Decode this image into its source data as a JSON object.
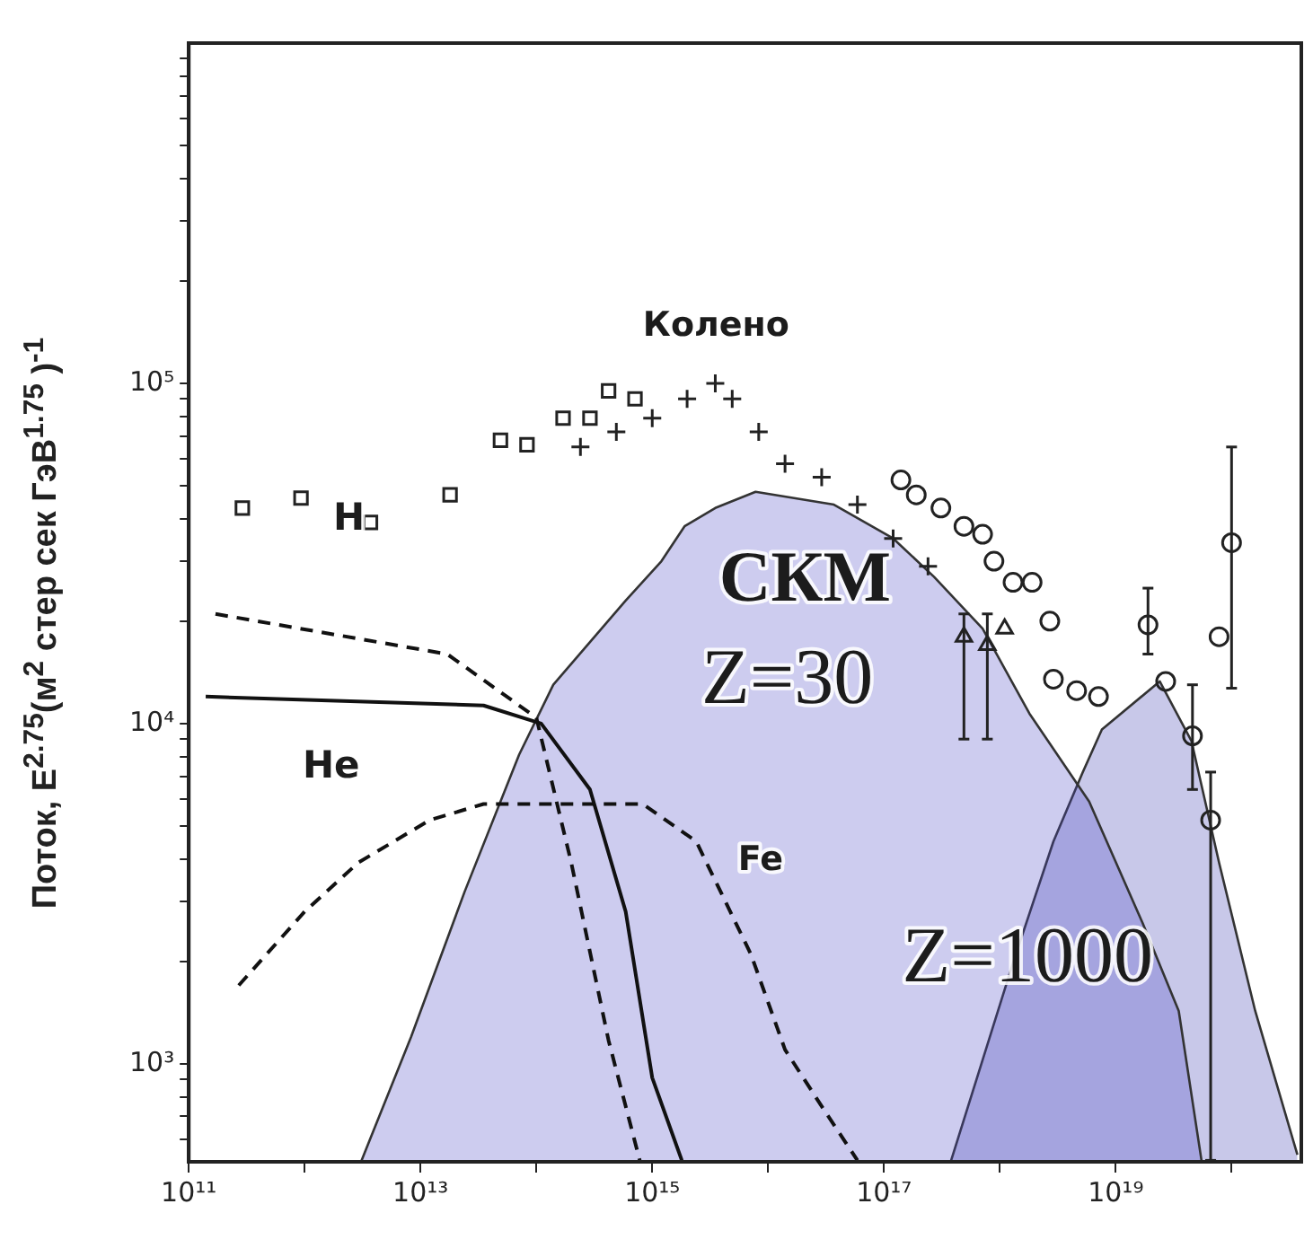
{
  "chart_data": {
    "type": "line",
    "ylabel": "Поток, E$^{2.75}$(м$^{2}$ стер сек ГэВ$^{1.75}$ )$^{-1}$",
    "log": "xy",
    "grid": false,
    "legend": false,
    "xlim": [
      100000000000.0,
      4e+20
    ],
    "ylim": [
      515,
      1000000.0
    ],
    "xticks": [
      {
        "value": 100000000000.0,
        "label": "10¹¹"
      },
      {
        "value": 1000000000000.0,
        "label": null
      },
      {
        "value": 10000000000000.0,
        "label": "10¹³"
      },
      {
        "value": 100000000000000.0,
        "label": null
      },
      {
        "value": 1000000000000000.0,
        "label": "10¹⁵"
      },
      {
        "value": 1e+16,
        "label": null
      },
      {
        "value": 1e+17,
        "label": "10¹⁷"
      },
      {
        "value": 1e+18,
        "label": null
      },
      {
        "value": 1e+19,
        "label": "10¹⁹"
      },
      {
        "value": 1e+20,
        "label": null
      }
    ],
    "yticks": [
      {
        "value": 600,
        "label": null
      },
      {
        "value": 700,
        "label": null
      },
      {
        "value": 800,
        "label": null
      },
      {
        "value": 900,
        "label": null
      },
      {
        "value": 1000,
        "label": "10³"
      },
      {
        "value": 2000,
        "label": null
      },
      {
        "value": 3000,
        "label": null
      },
      {
        "value": 4000,
        "label": null
      },
      {
        "value": 5000,
        "label": null
      },
      {
        "value": 6000,
        "label": null
      },
      {
        "value": 7000,
        "label": null
      },
      {
        "value": 8000,
        "label": null
      },
      {
        "value": 9000,
        "label": null
      },
      {
        "value": 10000,
        "label": "10⁴"
      },
      {
        "value": 20000,
        "label": null
      },
      {
        "value": 30000,
        "label": null
      },
      {
        "value": 40000,
        "label": null
      },
      {
        "value": 50000,
        "label": null
      },
      {
        "value": 60000,
        "label": null
      },
      {
        "value": 70000,
        "label": null
      },
      {
        "value": 80000,
        "label": null
      },
      {
        "value": 90000,
        "label": null
      },
      {
        "value": 100000,
        "label": "10⁵"
      },
      {
        "value": 200000,
        "label": null
      },
      {
        "value": 300000,
        "label": null
      },
      {
        "value": 400000,
        "label": null
      },
      {
        "value": 500000,
        "label": null
      },
      {
        "value": 600000,
        "label": null
      },
      {
        "value": 700000,
        "label": null
      },
      {
        "value": 800000,
        "label": null
      },
      {
        "value": 900000,
        "label": null
      }
    ],
    "series": [
      {
        "type": "area",
        "name": "Z=30",
        "color": "#4a47c4",
        "x": [
          3100000000000.0,
          8300000000000.0,
          24000000000000.0,
          71000000000000.0,
          140000000000000.0,
          590000000000000.0,
          1200000000000000.0,
          1900000000000000.0,
          3500000000000000.0,
          7800000000000000.0,
          3.7e+16,
          1.2e+17,
          2.7e+17,
          7.1e+17,
          1.8e+18,
          5.9e+18,
          1.7e+19,
          3.5e+19,
          5.5e+19
        ],
        "values": [
          520,
          1200,
          3200,
          8100,
          13000,
          23000,
          30000,
          38000,
          43000,
          48000,
          44000,
          35000,
          27000,
          19000,
          10700,
          5900,
          2600,
          1430,
          520
        ]
      },
      {
        "type": "area",
        "name": "Z=1000",
        "color": "#3b38b0",
        "x": [
          3.8e+17,
          1.3e+18,
          2.9e+18,
          5.2e+18,
          7.6e+18,
          2.4e+19,
          4.5e+19,
          7.8e+19,
          1.6e+20,
          3.7e+20
        ],
        "values": [
          520,
          1980,
          4500,
          7200,
          9600,
          13300,
          8900,
          3900,
          1430,
          540
        ]
      },
      {
        "type": "line",
        "name": "H",
        "line_style": "dashed",
        "color": "#111111",
        "x": [
          170000000000.0,
          17000000000000.0,
          100000000000000.0,
          200000000000000.0,
          420000000000000.0,
          780000000000000.0
        ],
        "values": [
          21000,
          16000,
          10400,
          3900,
          1170,
          520
        ]
      },
      {
        "type": "line",
        "name": "He",
        "line_style": "solid",
        "color": "#111111",
        "x": [
          140000000000.0,
          35000000000000.0,
          110000000000000.0,
          290000000000000.0,
          590000000000000.0,
          1000000000000000.0,
          1800000000000000.0
        ],
        "values": [
          12000,
          11300,
          10000,
          6400,
          2800,
          910,
          520
        ]
      },
      {
        "type": "line",
        "name": "Fe",
        "line_style": "dashed",
        "color": "#111111",
        "x": [
          270000000000.0,
          1000000000000.0,
          2900000000000.0,
          12000000000000.0,
          35000000000000.0,
          830000000000000.0,
          2400000000000000.0,
          7100000000000000.0,
          1.4e+16,
          2.9e+16,
          5.9e+16
        ],
        "values": [
          1700,
          2800,
          3900,
          5200,
          5800,
          5800,
          4500,
          2100,
          1100,
          750,
          520
        ]
      },
      {
        "type": "scatter",
        "marker": "square",
        "color": "#222222",
        "x": [
          290000000000.0,
          930000000000.0,
          3700000000000.0,
          18000000000000.0,
          49000000000000.0,
          83000000000000.0,
          170000000000000.0,
          290000000000000.0,
          420000000000000.0,
          710000000000000.0
        ],
        "values": [
          43000,
          46000,
          39000,
          47000,
          68000,
          66000,
          79000,
          79000,
          95000,
          90000
        ]
      },
      {
        "type": "scatter",
        "marker": "cross",
        "color": "#222222",
        "x": [
          240000000000000.0,
          490000000000000.0,
          1000000000000000.0,
          2000000000000000.0,
          3500000000000000.0,
          4900000000000000.0,
          8300000000000000.0,
          1.4e+16,
          2.9e+16,
          5.9e+16,
          1.2e+17,
          2.4e+17
        ],
        "values": [
          65000,
          72000,
          79000,
          90000,
          100000,
          90000,
          72000,
          58000,
          53000,
          44000,
          35000,
          29000
        ]
      },
      {
        "type": "scatter",
        "marker": "circle",
        "color": "#222222",
        "x": [
          1.4e+17,
          1.9e+17,
          3.1e+17,
          4.9e+17,
          7.1e+17,
          8.9e+17,
          1.3e+18,
          1.9e+18,
          2.7e+18,
          2.9e+18,
          4.6e+18,
          7.1e+18,
          1.9e+19,
          2.7e+19,
          4.6e+19,
          6.6e+19,
          7.8e+19,
          1e+20
        ],
        "values": [
          52000,
          47000,
          43000,
          38000,
          36000,
          30000,
          26000,
          26000,
          20000,
          13500,
          12500,
          12000,
          19500,
          13300,
          9200,
          5200,
          18000,
          34000
        ],
        "errors": [
          null,
          null,
          null,
          null,
          null,
          null,
          null,
          null,
          null,
          null,
          null,
          null,
          [
            16000,
            25000
          ],
          null,
          [
            6400,
            13000
          ],
          [
            520,
            7200
          ],
          null,
          [
            12700,
            65000
          ]
        ]
      },
      {
        "type": "scatter",
        "marker": "triangle",
        "color": "#222222",
        "x": [
          4.9e+17,
          7.8e+17,
          1.1e+18
        ],
        "values": [
          18000,
          17000,
          19000
        ],
        "errors": [
          [
            9000,
            21000
          ],
          [
            9000,
            21000
          ],
          null
        ]
      }
    ],
    "annotations": [
      "Колено",
      "СКМ"
    ]
  }
}
